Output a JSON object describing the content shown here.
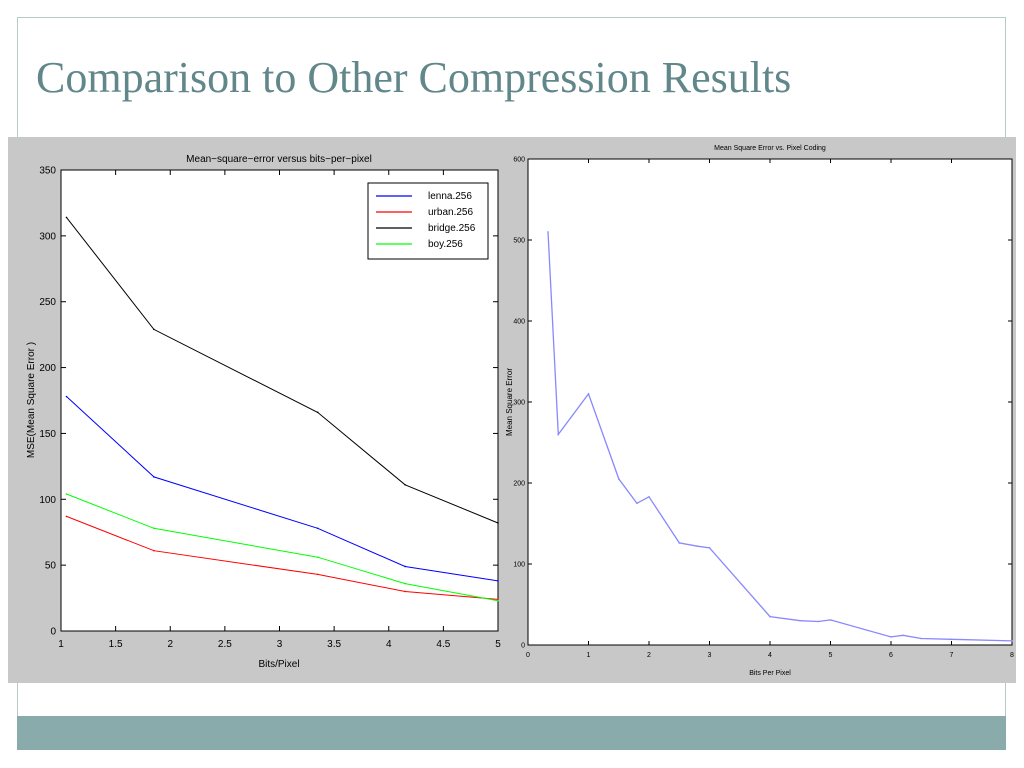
{
  "slide": {
    "title": "Comparison to Other Compression Results",
    "colors": {
      "title": "#62878a",
      "footer": "#8aabac",
      "frame": "#b8c9c9",
      "panel": "#c8c8c8"
    }
  },
  "chart_data": [
    {
      "type": "line",
      "title": "Mean−square−error versus bits−per−pixel",
      "xlabel": "Bits/Pixel",
      "ylabel": "MSE(Mean Square Error )",
      "xlim": [
        1,
        5
      ],
      "ylim": [
        0,
        350
      ],
      "xticks": [
        1,
        1.5,
        2,
        2.5,
        3,
        3.5,
        4,
        4.5,
        5
      ],
      "xtick_labels": [
        "1",
        "1.5",
        "2",
        "2.5",
        "3",
        "3.5",
        "4",
        "4.5",
        "5"
      ],
      "yticks": [
        0,
        50,
        100,
        150,
        200,
        250,
        300,
        350
      ],
      "ytick_labels": [
        "0",
        "50",
        "100",
        "150",
        "200",
        "250",
        "300",
        "350"
      ],
      "grid": false,
      "legend_position": "top-right",
      "series": [
        {
          "name": "lenna.256",
          "color": "#0000ff",
          "x": [
            1.05,
            1.85,
            3.35,
            4.15,
            5.0
          ],
          "y": [
            178,
            117,
            78,
            49,
            38
          ]
        },
        {
          "name": "urban.256",
          "color": "#ff0000",
          "x": [
            1.05,
            1.85,
            3.35,
            4.15,
            5.0
          ],
          "y": [
            87,
            61,
            43,
            30,
            24
          ]
        },
        {
          "name": "bridge.256",
          "color": "#000000",
          "x": [
            1.05,
            1.85,
            3.35,
            4.15,
            5.0
          ],
          "y": [
            314,
            229,
            166,
            111,
            82
          ]
        },
        {
          "name": "boy.256",
          "color": "#00ff00",
          "x": [
            1.05,
            1.85,
            3.35,
            4.15,
            5.0
          ],
          "y": [
            104,
            78,
            56,
            36,
            23
          ]
        }
      ]
    },
    {
      "type": "line",
      "title": "Mean Square Error vs. Pixel Coding",
      "xlabel": "Bits Per Pixel",
      "ylabel": "Mean Square Error",
      "xlim": [
        0,
        8
      ],
      "ylim": [
        0,
        600
      ],
      "xticks": [
        0,
        1,
        2,
        3,
        4,
        5,
        6,
        7,
        8
      ],
      "xtick_labels": [
        "0",
        "1",
        "2",
        "3",
        "4",
        "5",
        "6",
        "7",
        "8"
      ],
      "yticks": [
        0,
        100,
        200,
        300,
        400,
        500,
        600
      ],
      "ytick_labels": [
        "0",
        "100",
        "200",
        "300",
        "400",
        "500",
        "600"
      ],
      "grid": false,
      "series": [
        {
          "color": "#8888ff",
          "x": [
            0.33,
            0.5,
            1.0,
            1.5,
            1.8,
            2.0,
            2.5,
            2.8,
            3.0,
            4.0,
            4.5,
            4.8,
            5.0,
            6.0,
            6.2,
            6.5,
            7.0,
            8.0
          ],
          "y": [
            510,
            260,
            310,
            205,
            175,
            183,
            126,
            122,
            120,
            35,
            30,
            29,
            31,
            10,
            12,
            8,
            7,
            5
          ]
        }
      ]
    }
  ]
}
